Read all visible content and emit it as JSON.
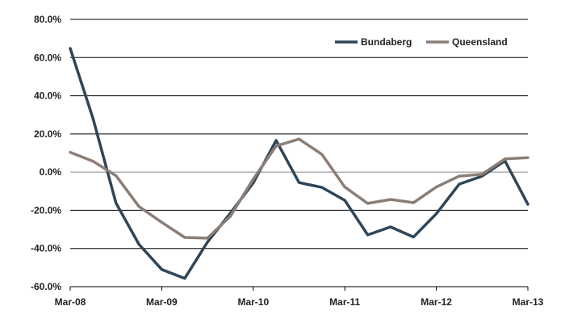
{
  "chart_data": {
    "type": "line",
    "title": "",
    "xlabel": "",
    "ylabel": "",
    "x": [
      "Mar-08",
      "Jun-08",
      "Sep-08",
      "Dec-08",
      "Mar-09",
      "Jun-09",
      "Sep-09",
      "Dec-09",
      "Mar-10",
      "Jun-10",
      "Sep-10",
      "Dec-10",
      "Mar-11",
      "Jun-11",
      "Sep-11",
      "Dec-11",
      "Mar-12",
      "Jun-12",
      "Sep-12",
      "Dec-12",
      "Mar-13"
    ],
    "x_tick_labels": [
      "Mar-08",
      "Mar-09",
      "Mar-10",
      "Mar-11",
      "Mar-12",
      "Mar-13"
    ],
    "x_tick_index": [
      0,
      4,
      8,
      12,
      16,
      20
    ],
    "y_tick_labels": [
      "80.0%",
      "60.0%",
      "40.0%",
      "20.0%",
      "0.0%",
      "-20.0%",
      "-40.0%",
      "-60.0%"
    ],
    "y_ticks": [
      80,
      60,
      40,
      20,
      0,
      -20,
      -40,
      -60
    ],
    "ylim": [
      -60,
      80
    ],
    "y_unit": "%",
    "grid": "horizontal",
    "legend_position": "top-right",
    "series": [
      {
        "name": "Bundaberg",
        "color": "#2e4658",
        "values": [
          64.8,
          28.0,
          -16.2,
          -37.8,
          -51.0,
          -55.7,
          -36.6,
          -21.5,
          -5.6,
          16.6,
          -5.5,
          -8.0,
          -14.8,
          -32.9,
          -28.7,
          -34.0,
          -21.8,
          -6.3,
          -2.1,
          5.9,
          -16.8
        ]
      },
      {
        "name": "Queensland",
        "color": "#8b7e77",
        "values": [
          10.4,
          5.7,
          -1.9,
          -18.0,
          -26.3,
          -34.2,
          -34.6,
          -23.1,
          -3.6,
          13.7,
          17.3,
          9.3,
          -7.8,
          -16.4,
          -14.3,
          -16.0,
          -7.8,
          -2.1,
          -1.1,
          6.9,
          7.6
        ]
      }
    ]
  }
}
